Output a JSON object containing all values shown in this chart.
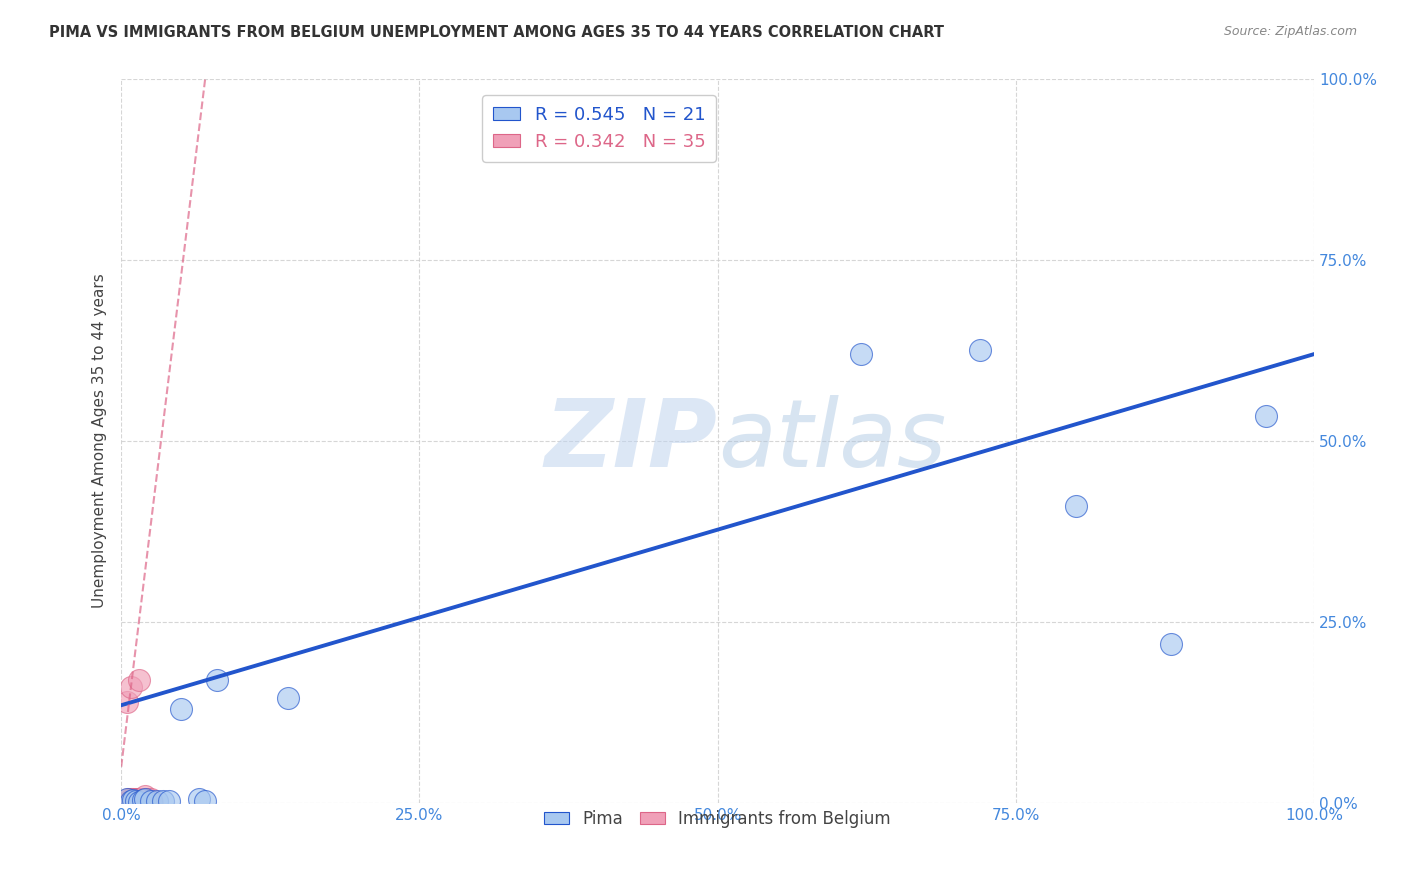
{
  "title": "PIMA VS IMMIGRANTS FROM BELGIUM UNEMPLOYMENT AMONG AGES 35 TO 44 YEARS CORRELATION CHART",
  "source": "Source: ZipAtlas.com",
  "ylabel": "Unemployment Among Ages 35 to 44 years",
  "xlim": [
    0,
    1
  ],
  "ylim": [
    0,
    1
  ],
  "xticks": [
    0,
    0.25,
    0.5,
    0.75,
    1.0
  ],
  "yticks": [
    0,
    0.25,
    0.5,
    0.75,
    1.0
  ],
  "xticklabels": [
    "0.0%",
    "25.0%",
    "50.0%",
    "75.0%",
    "100.0%"
  ],
  "yticklabels": [
    "0.0%",
    "25.0%",
    "50.0%",
    "75.0%",
    "100.0%"
  ],
  "pima_R": 0.545,
  "pima_N": 21,
  "belgium_R": 0.342,
  "belgium_N": 35,
  "pima_color": "#a8c8f0",
  "belgium_color": "#f0a0b8",
  "pima_trend_color": "#2255cc",
  "belgium_trend_color": "#dd6688",
  "pima_x": [
    0.005,
    0.008,
    0.01,
    0.012,
    0.015,
    0.018,
    0.02,
    0.025,
    0.03,
    0.035,
    0.04,
    0.05,
    0.065,
    0.07,
    0.08,
    0.14,
    0.62,
    0.72,
    0.8,
    0.88,
    0.96
  ],
  "pima_y": [
    0.005,
    0.003,
    0.004,
    0.003,
    0.002,
    0.004,
    0.005,
    0.003,
    0.003,
    0.003,
    0.003,
    0.13,
    0.005,
    0.003,
    0.17,
    0.145,
    0.62,
    0.625,
    0.41,
    0.22,
    0.535
  ],
  "belgium_x": [
    0.0,
    0.002,
    0.003,
    0.004,
    0.005,
    0.005,
    0.006,
    0.006,
    0.007,
    0.007,
    0.008,
    0.008,
    0.008,
    0.009,
    0.01,
    0.01,
    0.011,
    0.012,
    0.012,
    0.013,
    0.014,
    0.015,
    0.015,
    0.016,
    0.017,
    0.018,
    0.019,
    0.02,
    0.021,
    0.022,
    0.023,
    0.024,
    0.025,
    0.025,
    0.026
  ],
  "belgium_y": [
    0.0,
    0.0,
    0.0,
    0.0,
    0.0,
    0.14,
    0.0,
    0.005,
    0.0,
    0.005,
    0.0,
    0.005,
    0.16,
    0.005,
    0.0,
    0.005,
    0.0,
    0.0,
    0.005,
    0.0,
    0.005,
    0.005,
    0.17,
    0.005,
    0.0,
    0.0,
    0.005,
    0.01,
    0.0,
    0.005,
    0.0,
    0.0,
    0.0,
    0.005,
    0.0
  ],
  "pima_trend_y_at_0": 0.135,
  "pima_trend_y_at_1": 0.62,
  "belgium_trend_y_at_0": 0.05,
  "belgium_trend_slope": 13.5,
  "grid_color": "#cccccc",
  "grid_linestyle": "--",
  "watermark_zip_color": "#c8d8f0",
  "watermark_atlas_color": "#b0c8e8"
}
